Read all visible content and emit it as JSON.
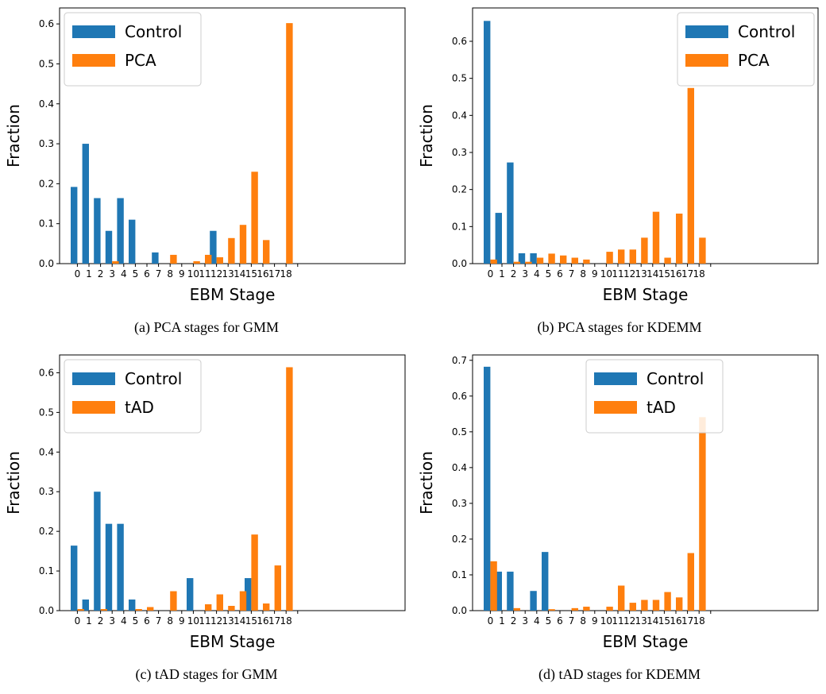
{
  "colors": {
    "control": "#1f77b4",
    "disease": "#ff7f0e"
  },
  "chart_data": [
    {
      "type": "bar",
      "caption": "(a) PCA stages for GMM",
      "xlabel": "EBM Stage",
      "ylabel": "Fraction",
      "categories": [
        "0",
        "1",
        "2",
        "3",
        "4",
        "5",
        "6",
        "7",
        "8",
        "9",
        "10",
        "11",
        "12",
        "13",
        "14",
        "15",
        "16",
        "17",
        "18"
      ],
      "ylim": [
        0,
        0.64
      ],
      "yticks": [
        "0.0",
        "0.1",
        "0.2",
        "0.3",
        "0.4",
        "0.5",
        "0.6"
      ],
      "legend_position": "upper-left",
      "series": [
        {
          "name": "Control",
          "values": [
            0.192,
            0.3,
            0.164,
            0.082,
            0.164,
            0.11,
            0,
            0.028,
            0,
            0,
            0,
            0,
            0.082,
            0,
            0,
            0,
            0,
            0,
            0
          ]
        },
        {
          "name": "PCA",
          "values": [
            0,
            0,
            0,
            0.006,
            0,
            0,
            0,
            0,
            0.022,
            0,
            0.006,
            0.022,
            0.016,
            0.064,
            0.097,
            0.23,
            0.059,
            0,
            0.602
          ]
        }
      ]
    },
    {
      "type": "bar",
      "caption": "(b) PCA stages for KDEMM",
      "xlabel": "EBM Stage",
      "ylabel": "Fraction",
      "categories": [
        "0",
        "1",
        "2",
        "3",
        "4",
        "5",
        "6",
        "7",
        "8",
        "9",
        "10",
        "11",
        "12",
        "13",
        "14",
        "15",
        "16",
        "17",
        "18"
      ],
      "ylim": [
        0,
        0.69
      ],
      "yticks": [
        "0.0",
        "0.1",
        "0.2",
        "0.3",
        "0.4",
        "0.5",
        "0.6"
      ],
      "legend_position": "upper-right",
      "series": [
        {
          "name": "Control",
          "values": [
            0.655,
            0.137,
            0.273,
            0.028,
            0.028,
            0,
            0,
            0,
            0,
            0,
            0,
            0,
            0,
            0,
            0,
            0,
            0,
            0,
            0
          ]
        },
        {
          "name": "PCA",
          "values": [
            0.011,
            0,
            0.005,
            0.005,
            0.016,
            0.027,
            0.022,
            0.016,
            0.011,
            0,
            0.032,
            0.038,
            0.038,
            0.07,
            0.14,
            0.016,
            0.135,
            0.474,
            0.07
          ]
        }
      ]
    },
    {
      "type": "bar",
      "caption": "(c) tAD stages for GMM",
      "xlabel": "EBM Stage",
      "ylabel": "Fraction",
      "categories": [
        "0",
        "1",
        "2",
        "3",
        "4",
        "5",
        "6",
        "7",
        "8",
        "9",
        "10",
        "11",
        "12",
        "13",
        "14",
        "15",
        "16",
        "17",
        "18"
      ],
      "ylim": [
        0,
        0.645
      ],
      "yticks": [
        "0.0",
        "0.1",
        "0.2",
        "0.3",
        "0.4",
        "0.5",
        "0.6"
      ],
      "legend_position": "upper-left",
      "series": [
        {
          "name": "Control",
          "values": [
            0.164,
            0.028,
            0.3,
            0.219,
            0.219,
            0.028,
            0,
            0,
            0,
            0,
            0.082,
            0,
            0,
            0,
            0,
            0.082,
            0,
            0,
            0
          ]
        },
        {
          "name": "tAD",
          "values": [
            0.004,
            0,
            0.004,
            0,
            0,
            0.004,
            0.009,
            0,
            0.049,
            0,
            0,
            0.016,
            0.041,
            0.012,
            0.049,
            0.192,
            0.018,
            0.114,
            0.614
          ]
        }
      ]
    },
    {
      "type": "bar",
      "caption": "(d) tAD stages for KDEMM",
      "xlabel": "EBM Stage",
      "ylabel": "Fraction",
      "categories": [
        "0",
        "1",
        "2",
        "3",
        "4",
        "5",
        "6",
        "7",
        "8",
        "9",
        "10",
        "11",
        "12",
        "13",
        "14",
        "15",
        "16",
        "17",
        "18"
      ],
      "ylim": [
        0,
        0.715
      ],
      "yticks": [
        "0.0",
        "0.1",
        "0.2",
        "0.3",
        "0.4",
        "0.5",
        "0.6",
        "0.7"
      ],
      "legend_position": "upper-center",
      "series": [
        {
          "name": "Control",
          "values": [
            0.682,
            0.109,
            0.109,
            0,
            0.055,
            0.164,
            0,
            0,
            0,
            0,
            0,
            0,
            0,
            0,
            0,
            0,
            0,
            0,
            0
          ]
        },
        {
          "name": "tAD",
          "values": [
            0.138,
            0,
            0.007,
            0,
            0,
            0.004,
            0,
            0.007,
            0.011,
            0,
            0.011,
            0.07,
            0.022,
            0.03,
            0.03,
            0.052,
            0.037,
            0.161,
            0.541
          ]
        }
      ]
    }
  ]
}
